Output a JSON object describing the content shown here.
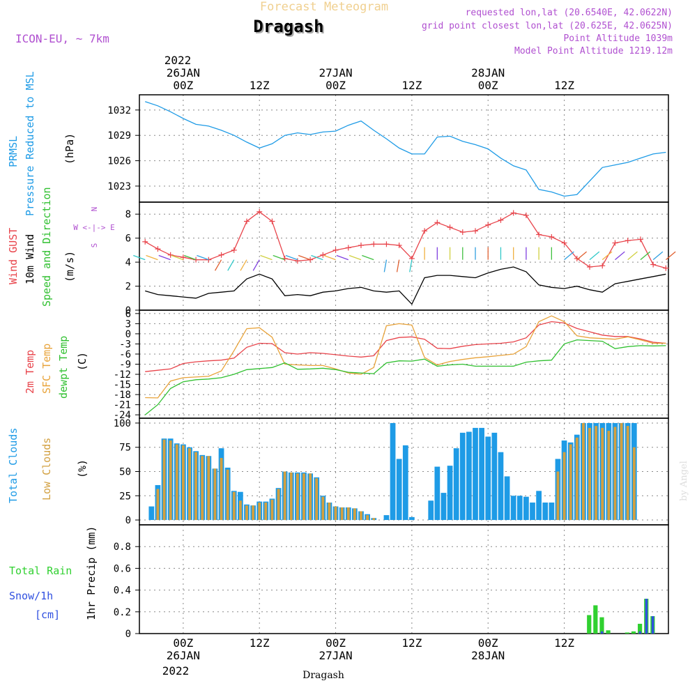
{
  "header": {
    "product": "Forecast Meteogram",
    "station": "Dragash",
    "model": "ICON-EU, ~ 7km",
    "requested": "requested lon,lat (20.6540E, 42.0622N)",
    "grid_point": "grid point closest lon,lat (20.625E, 42.0625N)",
    "point_alt": "Point Altitude 1039m",
    "model_alt": "Model Point Altitude 1219.12m",
    "footer_station": "Dragash",
    "watermark": "by Angel"
  },
  "colors": {
    "pressure": "#1e9be6",
    "gust": "#e8434a",
    "wind": "#000000",
    "dir_green": "#30c030",
    "temp2m": "#e8434a",
    "sfc": "#e8a33a",
    "dew": "#30c030",
    "total_cloud": "#1e9be6",
    "low_cloud": "#d2a040",
    "rain": "#30d030",
    "snow": "#3050e0",
    "purple": "#b050d0"
  },
  "chart_data": [
    {
      "type": "line",
      "panel": "pressure",
      "title": "PRMSL Pressure Reduced to MSL",
      "ylabel_left": [
        "PRMSL",
        "Pressure Reduced to MSL"
      ],
      "ylabel_unit": "(hPa)",
      "yticks": [
        "1032",
        "1029",
        "1026",
        "1023"
      ],
      "ytick_values": [
        1032,
        1029,
        1026,
        1023
      ],
      "ylim": [
        1021.1,
        1033.8
      ],
      "x_hours": [
        -6,
        -4,
        -2,
        0,
        2,
        4,
        6,
        8,
        10,
        12,
        14,
        16,
        18,
        20,
        22,
        24,
        26,
        28,
        30,
        32,
        34,
        36,
        38,
        40,
        42,
        44,
        46,
        48,
        50,
        52,
        54,
        56,
        58,
        60,
        62,
        64,
        66,
        68,
        70,
        72,
        74,
        76
      ],
      "values": [
        1033.0,
        1032.5,
        1031.8,
        1031.0,
        1030.3,
        1030.1,
        1029.6,
        1029.0,
        1028.2,
        1027.5,
        1028.0,
        1029.0,
        1029.3,
        1029.1,
        1029.4,
        1029.5,
        1030.2,
        1030.7,
        1029.6,
        1028.6,
        1027.5,
        1026.8,
        1026.8,
        1028.8,
        1028.9,
        1028.3,
        1027.9,
        1027.4,
        1026.3,
        1025.4,
        1024.9,
        1022.6,
        1022.3,
        1021.8,
        1022.0,
        1023.6,
        1025.2,
        1025.5,
        1025.8,
        1026.3,
        1026.8,
        1027.0
      ]
    },
    {
      "type": "line",
      "panel": "wind",
      "ylabel_left": [
        "Wind GUST",
        "10m Wind",
        "Speed and Direction"
      ],
      "ylabel_unit": "(m/s)",
      "compass": [
        "N",
        "W <-|-> E",
        "S"
      ],
      "yticks": [
        "8",
        "6",
        "4",
        "2",
        "0"
      ],
      "ytick_values": [
        8,
        6,
        4,
        2,
        0
      ],
      "ylim": [
        0,
        9.0
      ],
      "x_hours": [
        -6,
        -4,
        -2,
        0,
        2,
        4,
        6,
        8,
        10,
        12,
        14,
        16,
        18,
        20,
        22,
        24,
        26,
        28,
        30,
        32,
        34,
        36,
        38,
        40,
        42,
        44,
        46,
        48,
        50,
        52,
        54,
        56,
        58,
        60,
        62,
        64,
        66,
        68,
        70,
        72,
        74,
        76
      ],
      "series": [
        {
          "name": "Wind GUST",
          "values": [
            5.7,
            5.1,
            4.6,
            4.4,
            4.2,
            4.2,
            4.6,
            5.0,
            7.4,
            8.2,
            7.4,
            4.3,
            4.1,
            4.2,
            4.6,
            5.0,
            5.2,
            5.4,
            5.5,
            5.5,
            5.4,
            4.3,
            6.6,
            7.3,
            6.9,
            6.5,
            6.6,
            7.1,
            7.5,
            8.1,
            7.9,
            6.3,
            6.1,
            5.6,
            4.3,
            3.6,
            3.7,
            5.6,
            5.8,
            5.9,
            3.8,
            3.5
          ]
        },
        {
          "name": "10m Wind",
          "values": [
            1.6,
            1.3,
            1.2,
            1.1,
            1.0,
            1.4,
            1.5,
            1.6,
            2.6,
            3.0,
            2.6,
            1.2,
            1.3,
            1.2,
            1.5,
            1.6,
            1.8,
            1.9,
            1.6,
            1.5,
            1.6,
            0.5,
            2.7,
            2.9,
            2.9,
            2.8,
            2.7,
            3.1,
            3.4,
            3.6,
            3.2,
            2.1,
            1.9,
            1.8,
            2.0,
            1.7,
            1.5,
            2.2,
            2.4,
            2.6,
            2.8,
            3.0
          ]
        }
      ]
    },
    {
      "type": "line",
      "panel": "temperature",
      "ylabel_left": [
        "2m Temp",
        "SFC Temp",
        "dewpt Temp"
      ],
      "ylabel_unit": "(C)",
      "yticks": [
        "6",
        "3",
        "0",
        "-3",
        "-6",
        "-9",
        "-12",
        "-15",
        "-18",
        "-21",
        "-24"
      ],
      "ytick_values": [
        6,
        3,
        0,
        -3,
        -6,
        -9,
        -12,
        -15,
        -18,
        -21,
        -24
      ],
      "ylim": [
        -25,
        7
      ],
      "x_hours": [
        -6,
        -4,
        -2,
        0,
        2,
        4,
        6,
        8,
        10,
        12,
        14,
        16,
        18,
        20,
        22,
        24,
        26,
        28,
        30,
        32,
        34,
        36,
        38,
        40,
        42,
        44,
        46,
        48,
        50,
        52,
        54,
        56,
        58,
        60,
        62,
        64,
        66,
        68,
        70,
        72,
        74,
        76
      ],
      "series": [
        {
          "name": "2m Temp",
          "values": [
            -11.2,
            -10.8,
            -10.4,
            -8.8,
            -8.3,
            -8.0,
            -7.8,
            -7.2,
            -4.0,
            -2.8,
            -2.9,
            -5.6,
            -6.0,
            -5.6,
            -5.8,
            -6.2,
            -6.6,
            -6.9,
            -6.5,
            -2.0,
            -1.1,
            -0.9,
            -1.6,
            -4.3,
            -4.4,
            -3.7,
            -3.2,
            -3.0,
            -2.8,
            -2.4,
            -1.2,
            2.6,
            3.6,
            3.2,
            1.6,
            0.6,
            -0.4,
            -0.8,
            -0.8,
            -1.5,
            -2.5,
            -2.8
          ]
        },
        {
          "name": "SFC Temp",
          "values": [
            -18.9,
            -19.0,
            -14.0,
            -13.0,
            -12.8,
            -12.6,
            -11.0,
            -5.0,
            1.5,
            1.8,
            -1.0,
            -9.0,
            -9.2,
            -9.4,
            -9.4,
            -10.4,
            -11.6,
            -12.0,
            -10.0,
            2.4,
            3.0,
            2.6,
            -7.0,
            -9.2,
            -8.2,
            -7.6,
            -7.1,
            -6.8,
            -6.4,
            -6.0,
            -3.8,
            3.6,
            5.3,
            3.6,
            -0.6,
            -1.2,
            -1.4,
            -1.6,
            -0.9,
            -1.8,
            -2.8,
            -2.8
          ]
        },
        {
          "name": "dewpt Temp",
          "values": [
            -24.0,
            -21.0,
            -16.2,
            -14.2,
            -13.6,
            -13.4,
            -13.0,
            -12.0,
            -10.6,
            -10.3,
            -10.0,
            -8.6,
            -10.5,
            -10.4,
            -10.2,
            -10.6,
            -11.4,
            -11.6,
            -11.8,
            -8.6,
            -8.0,
            -8.1,
            -7.5,
            -9.6,
            -9.2,
            -9.0,
            -9.6,
            -9.6,
            -9.6,
            -9.6,
            -8.4,
            -8.0,
            -7.8,
            -3.0,
            -1.8,
            -2.0,
            -2.2,
            -4.4,
            -3.8,
            -3.5,
            -3.6,
            -3.5
          ]
        }
      ]
    },
    {
      "type": "bar",
      "panel": "clouds",
      "ylabel_left": [
        "Total Clouds",
        "Low Clouds"
      ],
      "ylabel_unit": "(%)",
      "yticks": [
        "100",
        "75",
        "50",
        "25",
        "0"
      ],
      "ytick_values": [
        100,
        75,
        50,
        25,
        0
      ],
      "ylim": [
        -5,
        105
      ],
      "x_hours": [
        -6,
        -5,
        -4,
        -3,
        -2,
        -1,
        0,
        1,
        2,
        3,
        4,
        5,
        6,
        7,
        8,
        9,
        10,
        11,
        12,
        13,
        14,
        15,
        16,
        17,
        18,
        19,
        20,
        21,
        22,
        23,
        24,
        25,
        26,
        27,
        28,
        29,
        30,
        31,
        32,
        33,
        34,
        35,
        36,
        37,
        38,
        39,
        40,
        41,
        42,
        43,
        44,
        45,
        46,
        47,
        48,
        49,
        50,
        51,
        52,
        53,
        54,
        55,
        56,
        57,
        58,
        59,
        60,
        61,
        62,
        63,
        64,
        65,
        66,
        67,
        68,
        69,
        70,
        71,
        72,
        73,
        74,
        75,
        76
      ],
      "series": [
        {
          "name": "Total Clouds",
          "values": [
            0,
            14,
            36,
            84,
            84,
            79,
            78,
            75,
            71,
            67,
            66,
            53,
            74,
            54,
            30,
            29,
            16,
            15,
            19,
            19,
            22,
            33,
            50,
            49,
            49,
            49,
            48,
            44,
            25,
            18,
            14,
            13,
            13,
            12,
            9,
            6,
            2,
            0,
            5,
            100,
            63,
            77,
            3,
            0,
            0,
            20,
            55,
            28,
            56,
            74,
            90,
            91,
            95,
            95,
            86,
            90,
            70,
            45,
            25,
            25,
            24,
            18,
            30,
            18,
            18,
            63,
            82,
            80,
            88,
            100,
            100,
            100,
            100,
            100,
            100,
            100,
            100,
            100
          ]
        },
        {
          "name": "Low Clouds",
          "values": [
            0,
            0,
            32,
            83,
            82,
            78,
            77,
            74,
            70,
            66,
            66,
            53,
            64,
            52,
            29,
            20,
            15,
            15,
            18,
            18,
            21,
            32,
            50,
            49,
            48,
            48,
            48,
            43,
            24,
            18,
            14,
            13,
            13,
            12,
            9,
            5,
            2,
            0,
            0,
            0,
            0,
            0,
            0,
            0,
            0,
            0,
            0,
            0,
            0,
            0,
            0,
            0,
            0,
            0,
            0,
            0,
            0,
            0,
            0,
            0,
            0,
            0,
            0,
            0,
            0,
            50,
            70,
            78,
            85,
            100,
            95,
            97,
            95,
            92,
            96,
            100,
            97,
            75
          ]
        }
      ]
    },
    {
      "type": "bar",
      "panel": "precipitation",
      "ylabel_left": [
        "Total  Rain",
        "Snow/1h",
        "[cm]"
      ],
      "ylabel_unit": "1hr Precip (mm)",
      "yticks": [
        "0.8",
        "0.6",
        "0.4",
        "0.2",
        "0"
      ],
      "ytick_values": [
        0.8,
        0.6,
        0.4,
        0.2,
        0
      ],
      "ylim": [
        0,
        1.0
      ],
      "x_hours": [
        64,
        65,
        66,
        67,
        68,
        69,
        70,
        71,
        72,
        73,
        74,
        75,
        76
      ],
      "series": [
        {
          "name": "Total Rain",
          "values": [
            0.17,
            0.26,
            0.15,
            0.03,
            0.0,
            0.0,
            0.01,
            0.02,
            0.09,
            0.32,
            0.16,
            0.0,
            0.0
          ]
        },
        {
          "name": "Snow/1h",
          "values": [
            0.0,
            0.0,
            0.02,
            0.0,
            0.0,
            0.0,
            0.0,
            0.0,
            0.02,
            0.32,
            0.16,
            0.0,
            0.0
          ]
        }
      ]
    }
  ],
  "time_axis": {
    "top_year": "2022",
    "labels": [
      {
        "hour": 0,
        "line1": "26JAN",
        "line2": "00Z"
      },
      {
        "hour": 12,
        "line1": "",
        "line2": "12Z"
      },
      {
        "hour": 24,
        "line1": "27JAN",
        "line2": "00Z"
      },
      {
        "hour": 36,
        "line1": "",
        "line2": "12Z"
      },
      {
        "hour": 48,
        "line1": "28JAN",
        "line2": "00Z"
      },
      {
        "hour": 60,
        "line1": "",
        "line2": "12Z"
      }
    ],
    "bottom_year": "2022"
  }
}
